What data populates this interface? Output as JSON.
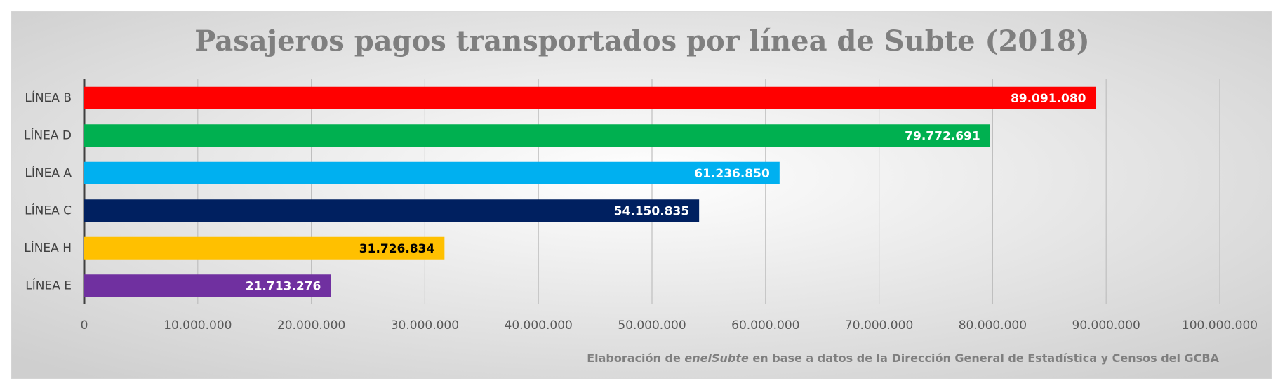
{
  "chart_data": {
    "type": "bar",
    "orientation": "horizontal",
    "title": "Pasajeros pagos transportados por línea de Subte (2018)",
    "categories": [
      "LÍNEA B",
      "LÍNEA D",
      "LÍNEA A",
      "LÍNEA C",
      "LÍNEA H",
      "LÍNEA E"
    ],
    "values": [
      89091080,
      79772691,
      61236850,
      54150835,
      31726834,
      21713276
    ],
    "value_labels": [
      "89.091.080",
      "79.772.691",
      "61.236.850",
      "54.150.835",
      "31.726.834",
      "21.713.276"
    ],
    "colors": [
      "#ff0000",
      "#00b050",
      "#00b0f0",
      "#002060",
      "#ffc000",
      "#7030a0"
    ],
    "label_colors": [
      "#ffffff",
      "#ffffff",
      "#ffffff",
      "#ffffff",
      "#000000",
      "#ffffff"
    ],
    "xlim": [
      0,
      100000000
    ],
    "xticks": [
      0,
      {
        "value": 10000000,
        "label": "10.000.000"
      },
      {
        "value": 20000000,
        "label": "20.000.000"
      },
      {
        "value": 30000000,
        "label": "30.000.000"
      },
      {
        "value": 40000000,
        "label": "40.000.000"
      },
      {
        "value": 50000000,
        "label": "50.000.000"
      },
      {
        "value": 60000000,
        "label": "60.000.000"
      },
      {
        "value": 70000000,
        "label": "70.000.000"
      },
      {
        "value": 80000000,
        "label": "80.000.000"
      },
      {
        "value": 90000000,
        "label": "90.000.000"
      },
      {
        "value": 100000000,
        "label": "100.000.000"
      }
    ],
    "grid": true,
    "source": {
      "prefix": "Elaboración de",
      "brand": "enelSubte",
      "suffix": "en base a datos de la Dirección General de Estadística y Censos del GCBA"
    }
  }
}
